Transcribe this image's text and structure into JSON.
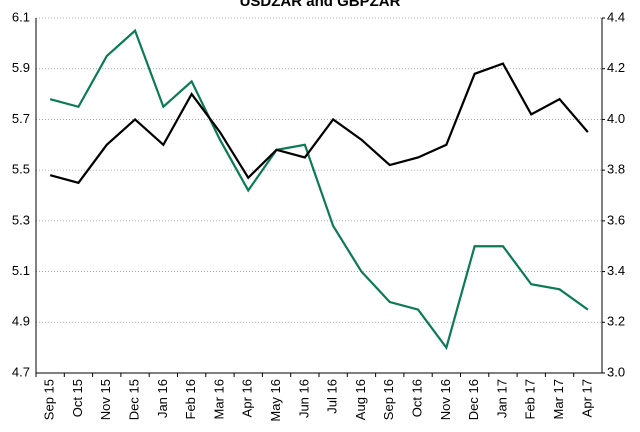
{
  "chart_data": {
    "type": "line",
    "title": "USDZAR and GBPZAR",
    "categories": [
      "Sep 15",
      "Oct 15",
      "Nov 15",
      "Dec 15",
      "Jan 16",
      "Feb 16",
      "Mar 16",
      "Apr 16",
      "May 16",
      "Jun 16",
      "Jul 16",
      "Aug 16",
      "Sep 16",
      "Oct 16",
      "Nov 16",
      "Dec 16",
      "Jan 17",
      "Feb 17",
      "Mar 17",
      "Apr 17"
    ],
    "series": [
      {
        "color": "#0b7a55",
        "values": [
          5.78,
          5.75,
          5.95,
          6.05,
          5.75,
          5.85,
          5.62,
          5.42,
          5.58,
          5.6,
          5.28,
          5.1,
          4.98,
          4.95,
          4.8,
          5.2,
          5.2,
          5.05,
          5.03,
          4.95
        ]
      },
      {
        "color": "#000000",
        "axis": "y2",
        "values": [
          3.78,
          3.75,
          3.9,
          4.0,
          3.9,
          4.1,
          3.95,
          3.77,
          3.88,
          3.85,
          4.0,
          3.92,
          3.82,
          3.85,
          3.9,
          4.18,
          4.22,
          4.02,
          4.08,
          3.95
        ]
      }
    ],
    "ylim": [
      4.7,
      6.1
    ],
    "yticks": [
      4.7,
      4.9,
      5.1,
      5.3,
      5.5,
      5.7,
      5.9,
      6.1
    ],
    "y2lim": [
      3.0,
      4.4
    ],
    "y2ticks": [
      {
        "value": 3.0,
        "label": "3.0"
      },
      3.2,
      3.4,
      3.6,
      3.8,
      {
        "value": 4.0,
        "label": "4.0"
      },
      4.2,
      4.4
    ],
    "grid": true
  }
}
